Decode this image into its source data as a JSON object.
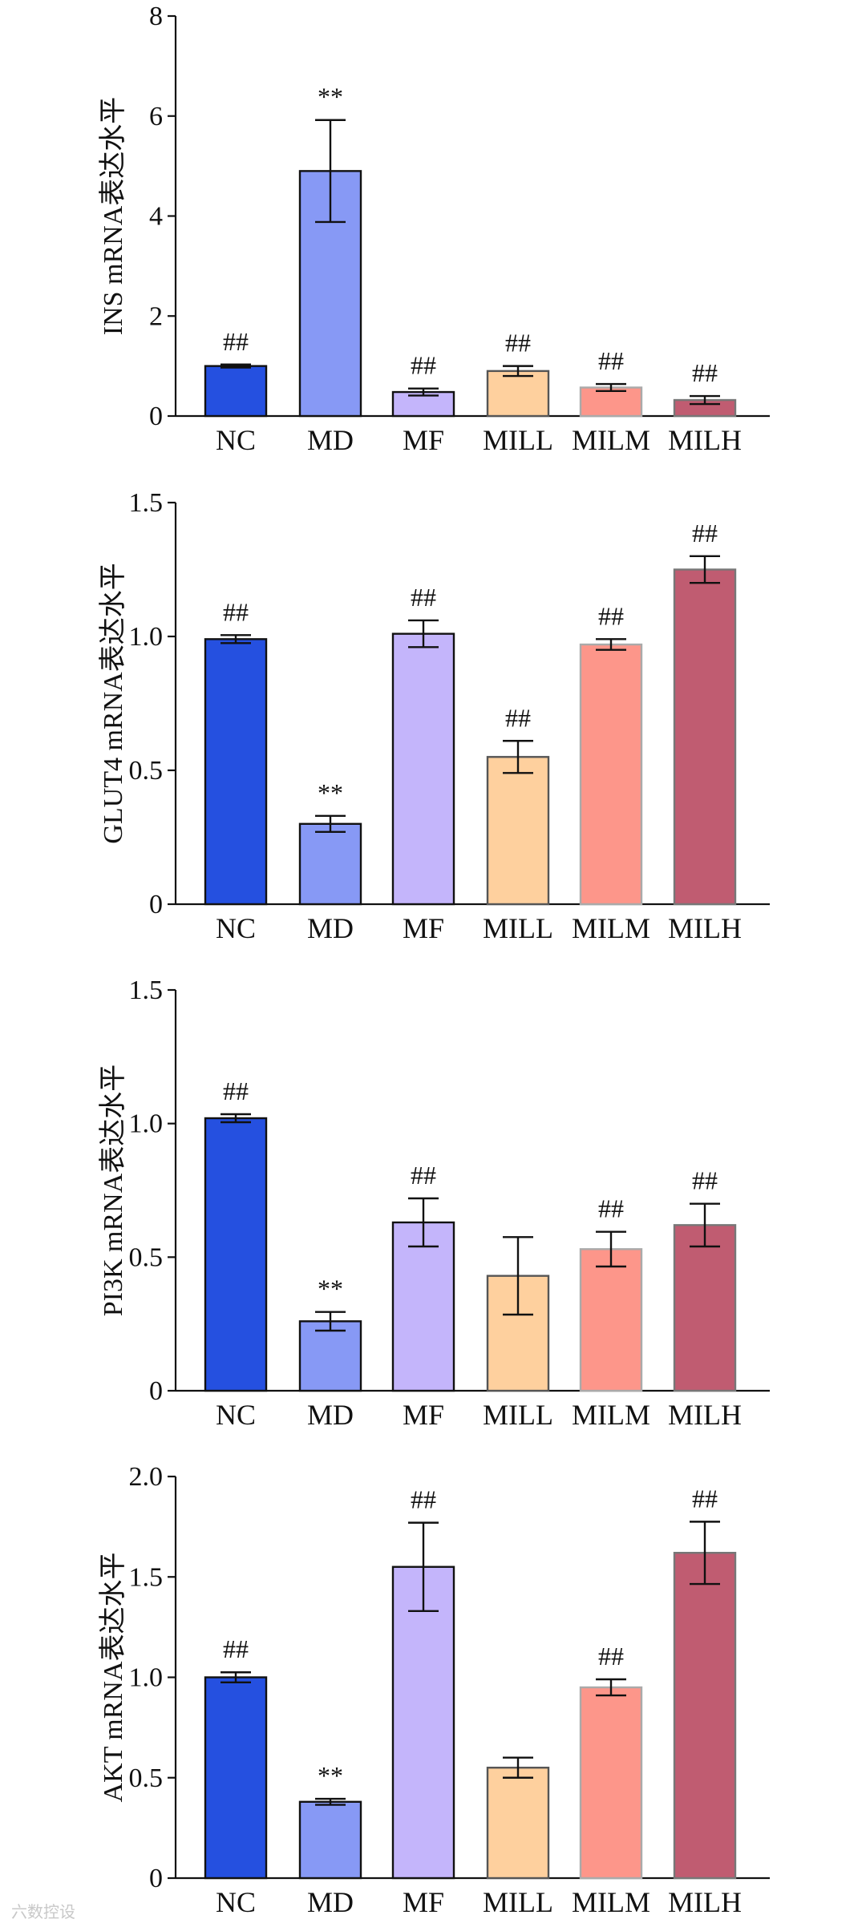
{
  "watermark": "六数控设",
  "chart_data": [
    {
      "type": "bar",
      "ylabel": "INS mRNA表达水平",
      "categories": [
        "NC",
        "MD",
        "MF",
        "MILL",
        "MILM",
        "MILH"
      ],
      "values": [
        1.0,
        4.9,
        0.48,
        0.9,
        0.57,
        0.32
      ],
      "errors": [
        0.03,
        1.02,
        0.07,
        0.1,
        0.07,
        0.08
      ],
      "annotations": [
        "##",
        "**",
        "##",
        "##",
        "##",
        "##"
      ],
      "ylim": [
        0,
        8
      ],
      "yticks": [
        0,
        2,
        4,
        6,
        8
      ],
      "ytick_labels": [
        "0",
        "2",
        "4",
        "6",
        "8"
      ]
    },
    {
      "type": "bar",
      "ylabel": "GLUT4 mRNA表达水平",
      "categories": [
        "NC",
        "MD",
        "MF",
        "MILL",
        "MILM",
        "MILH"
      ],
      "values": [
        0.99,
        0.3,
        1.01,
        0.55,
        0.97,
        1.25
      ],
      "errors": [
        0.015,
        0.03,
        0.05,
        0.06,
        0.02,
        0.05
      ],
      "annotations": [
        "##",
        "**",
        "##",
        "##",
        "##",
        "##"
      ],
      "ylim": [
        0,
        1.5
      ],
      "yticks": [
        0,
        0.5,
        1.0,
        1.5
      ],
      "ytick_labels": [
        "0",
        "0.5",
        "1.0",
        "1.5"
      ]
    },
    {
      "type": "bar",
      "ylabel": "PI3K mRNA表达水平",
      "categories": [
        "NC",
        "MD",
        "MF",
        "MILL",
        "MILM",
        "MILH"
      ],
      "values": [
        1.02,
        0.26,
        0.63,
        0.43,
        0.53,
        0.62
      ],
      "errors": [
        0.015,
        0.035,
        0.09,
        0.145,
        0.065,
        0.08
      ],
      "annotations": [
        "##",
        "**",
        "##",
        "",
        "##",
        "##"
      ],
      "ylim": [
        0,
        1.5
      ],
      "yticks": [
        0,
        0.5,
        1.0,
        1.5
      ],
      "ytick_labels": [
        "0",
        "0.5",
        "1.0",
        "1.5"
      ]
    },
    {
      "type": "bar",
      "ylabel": "AKT mRNA表达水平",
      "categories": [
        "NC",
        "MD",
        "MF",
        "MILL",
        "MILM",
        "MILH"
      ],
      "values": [
        1.0,
        0.38,
        1.55,
        0.55,
        0.95,
        1.62
      ],
      "errors": [
        0.025,
        0.015,
        0.22,
        0.05,
        0.04,
        0.155
      ],
      "annotations": [
        "##",
        "**",
        "##",
        "",
        "##",
        "##"
      ],
      "ylim": [
        0,
        2.0
      ],
      "yticks": [
        0,
        0.5,
        1.0,
        1.5,
        2.0
      ],
      "ytick_labels": [
        "0",
        "0.5",
        "1.0",
        "1.5",
        "2.0"
      ]
    }
  ],
  "colors": {
    "fills": [
      "#2550e0",
      "#8799f5",
      "#c4b5fb",
      "#fed09e",
      "#fd968a",
      "#c05c71"
    ],
    "strokes": [
      "#111111",
      "#111111",
      "#111111",
      "#555555",
      "#aaaaaa",
      "#777777"
    ],
    "axis": "#111111"
  }
}
